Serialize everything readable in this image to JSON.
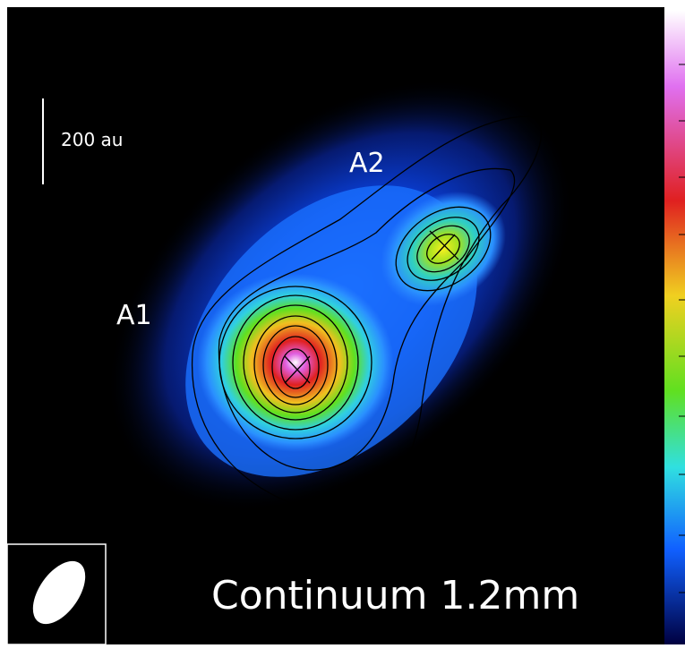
{
  "labels": {
    "scale_bar": "200 au",
    "source_a1": "A1",
    "source_a2": "A2",
    "caption": "Continuum 1.2mm"
  }
}
